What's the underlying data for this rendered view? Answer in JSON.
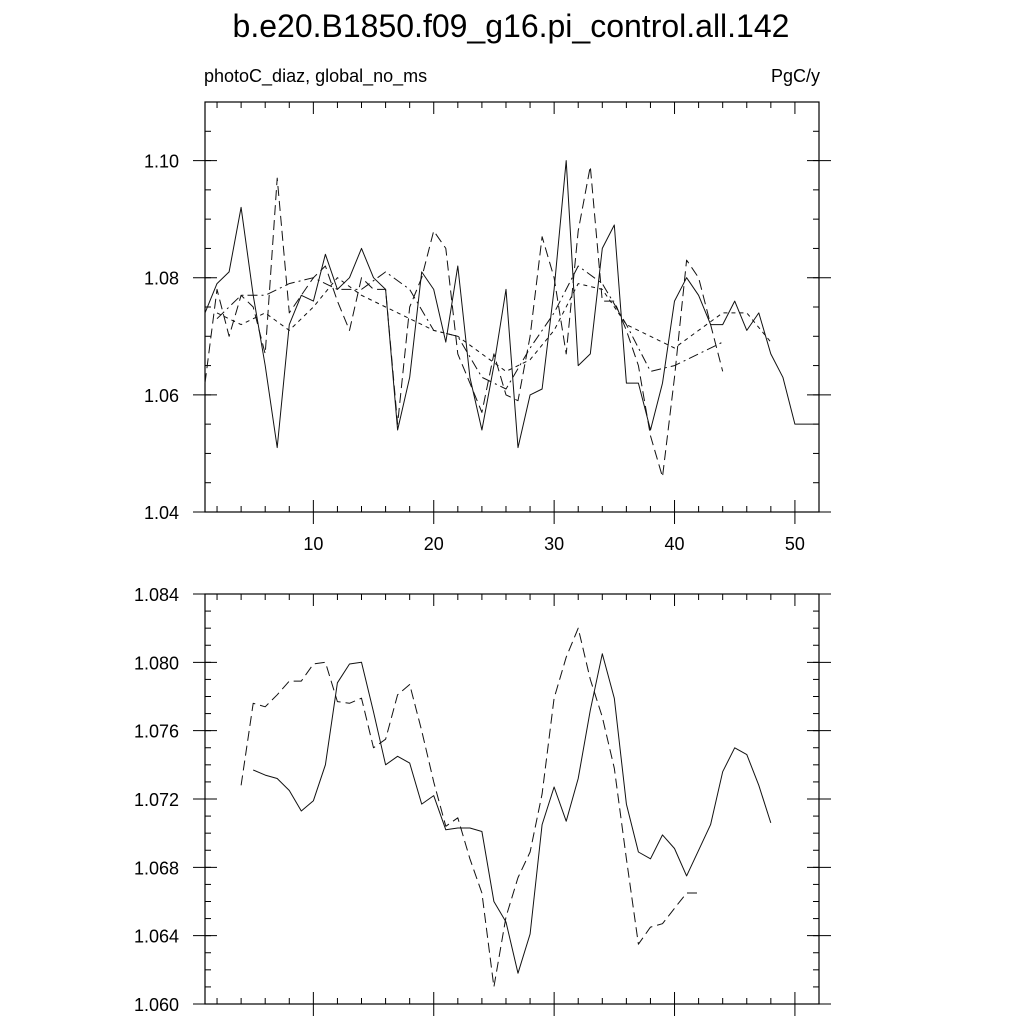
{
  "page": {
    "title": "b.e20.B1850.f09_g16.pi_control.all.142",
    "left_label": "photoC_diaz, global_no_ms",
    "right_label": "PgC/y"
  },
  "chart_data": [
    {
      "type": "line",
      "title": "b.e20.B1850.f09_g16.pi_control.all.142",
      "subtitle_left": "photoC_diaz, global_no_ms",
      "subtitle_right": "PgC/y",
      "xlim": [
        1,
        52
      ],
      "ylim": [
        1.04,
        1.11
      ],
      "x_ticks": [
        10,
        20,
        30,
        40,
        50
      ],
      "x_tick_labels": [
        "10",
        "20",
        "30",
        "40",
        "50"
      ],
      "y_ticks": [
        1.04,
        1.06,
        1.08,
        1.1
      ],
      "y_tick_labels": [
        "1.04",
        "1.06",
        "1.08",
        "1.10"
      ],
      "grid": false,
      "series": [
        {
          "style": "solid",
          "x": [
            1,
            2,
            3,
            4,
            5,
            6,
            7,
            8,
            9,
            10,
            11,
            12,
            13,
            14,
            15,
            16,
            17,
            18,
            19,
            20,
            21,
            22,
            23,
            24,
            25,
            26,
            27,
            28,
            29,
            30,
            31,
            32,
            33,
            34,
            35,
            36,
            37,
            38,
            39,
            40,
            41,
            42,
            43,
            44,
            45,
            46,
            47,
            48,
            49,
            50,
            51,
            52
          ],
          "y": [
            1.074,
            1.079,
            1.081,
            1.092,
            1.077,
            1.065,
            1.051,
            1.072,
            1.077,
            1.076,
            1.084,
            1.078,
            1.08,
            1.085,
            1.08,
            1.078,
            1.054,
            1.063,
            1.081,
            1.078,
            1.069,
            1.082,
            1.063,
            1.054,
            1.065,
            1.078,
            1.051,
            1.06,
            1.061,
            1.078,
            1.1,
            1.065,
            1.067,
            1.085,
            1.089,
            1.062,
            1.062,
            1.054,
            1.062,
            1.076,
            1.08,
            1.077,
            1.072,
            1.072,
            1.076,
            1.071,
            1.074,
            1.067,
            1.063,
            1.055,
            1.055,
            1.055
          ]
        },
        {
          "style": "dashed",
          "x": [
            1,
            2,
            3,
            4,
            5,
            6,
            7,
            8,
            9,
            10,
            11,
            12,
            13,
            14,
            15,
            16,
            17,
            18,
            19,
            20,
            21,
            22,
            23,
            24,
            25,
            26,
            27,
            28,
            29,
            30,
            31,
            32,
            33,
            34,
            35,
            36,
            37,
            38,
            39,
            40,
            41,
            42,
            43,
            44
          ],
          "y": [
            1.062,
            1.078,
            1.07,
            1.077,
            1.075,
            1.067,
            1.097,
            1.074,
            1.077,
            1.08,
            1.082,
            1.076,
            1.071,
            1.08,
            1.078,
            1.078,
            1.055,
            1.075,
            1.08,
            1.088,
            1.085,
            1.067,
            1.062,
            1.057,
            1.067,
            1.06,
            1.059,
            1.07,
            1.087,
            1.08,
            1.067,
            1.088,
            1.099,
            1.076,
            1.076,
            1.071,
            1.065,
            1.053,
            1.046,
            1.063,
            1.083,
            1.08,
            1.072,
            1.064
          ]
        },
        {
          "style": "short-dash",
          "x": [
            2,
            4,
            6,
            8,
            10,
            12,
            14,
            16,
            18,
            20,
            22,
            24,
            26,
            28,
            30,
            32,
            34,
            36,
            38,
            40,
            42,
            44,
            46,
            48
          ],
          "y": [
            1.074,
            1.072,
            1.074,
            1.071,
            1.075,
            1.08,
            1.077,
            1.075,
            1.073,
            1.071,
            1.07,
            1.067,
            1.064,
            1.066,
            1.071,
            1.079,
            1.078,
            1.072,
            1.07,
            1.068,
            1.071,
            1.074,
            1.074,
            1.069
          ]
        },
        {
          "style": "dash-dot",
          "x": [
            2,
            4,
            6,
            8,
            10,
            12,
            14,
            16,
            18,
            20,
            22,
            24,
            26,
            28,
            30,
            32,
            34,
            36,
            38,
            40,
            42,
            44
          ],
          "y": [
            1.073,
            1.077,
            1.077,
            1.079,
            1.08,
            1.078,
            1.078,
            1.081,
            1.078,
            1.071,
            1.07,
            1.063,
            1.061,
            1.068,
            1.074,
            1.082,
            1.079,
            1.072,
            1.064,
            1.065,
            1.067,
            1.069
          ]
        }
      ]
    },
    {
      "type": "line",
      "xlim": [
        1,
        52
      ],
      "ylim": [
        1.06,
        1.084
      ],
      "x_ticks": [
        10,
        20,
        30,
        40,
        50
      ],
      "y_ticks": [
        1.06,
        1.064,
        1.068,
        1.072,
        1.076,
        1.08,
        1.084
      ],
      "y_tick_labels": [
        "1.060",
        "1.064",
        "1.068",
        "1.072",
        "1.076",
        "1.080",
        "1.084"
      ],
      "grid": false,
      "series": [
        {
          "style": "solid",
          "x": [
            5,
            6,
            7,
            8,
            9,
            10,
            11,
            12,
            13,
            14,
            15,
            16,
            17,
            18,
            19,
            20,
            21,
            22,
            23,
            24,
            25,
            26,
            27,
            28,
            29,
            30,
            31,
            32,
            33,
            34,
            35,
            36,
            37,
            38,
            39,
            40,
            41,
            42,
            43,
            44,
            45,
            46,
            47,
            48
          ],
          "y": [
            1.0737,
            1.0734,
            1.0732,
            1.0725,
            1.0713,
            1.0719,
            1.074,
            1.0788,
            1.0799,
            1.08,
            1.0771,
            1.074,
            1.0745,
            1.0741,
            1.0717,
            1.0722,
            1.0702,
            1.0703,
            1.0703,
            1.0701,
            1.066,
            1.0648,
            1.0618,
            1.0641,
            1.0705,
            1.0727,
            1.0707,
            1.0732,
            1.0772,
            1.0805,
            1.0779,
            1.0717,
            1.0689,
            1.0685,
            1.0699,
            1.0691,
            1.0675,
            1.069,
            1.0705,
            1.0736,
            1.075,
            1.0746,
            1.0728,
            1.0706
          ]
        },
        {
          "style": "dashed",
          "x": [
            4,
            5,
            6,
            7,
            8,
            9,
            10,
            11,
            12,
            13,
            14,
            15,
            16,
            17,
            18,
            19,
            20,
            21,
            22,
            23,
            24,
            25,
            26,
            27,
            28,
            29,
            30,
            31,
            32,
            33,
            34,
            35,
            36,
            37,
            38,
            39,
            40,
            41,
            42
          ],
          "y": [
            1.0728,
            1.0776,
            1.0774,
            1.0781,
            1.0789,
            1.0789,
            1.0799,
            1.08,
            1.0777,
            1.0776,
            1.0779,
            1.075,
            1.0755,
            1.0781,
            1.0787,
            1.076,
            1.073,
            1.0704,
            1.0709,
            1.0685,
            1.0665,
            1.061,
            1.0651,
            1.0674,
            1.0689,
            1.0723,
            1.0779,
            1.0803,
            1.082,
            1.079,
            1.0768,
            1.0738,
            1.0685,
            1.0635,
            1.0645,
            1.0647,
            1.0656,
            1.0665,
            1.0665
          ]
        }
      ]
    }
  ]
}
